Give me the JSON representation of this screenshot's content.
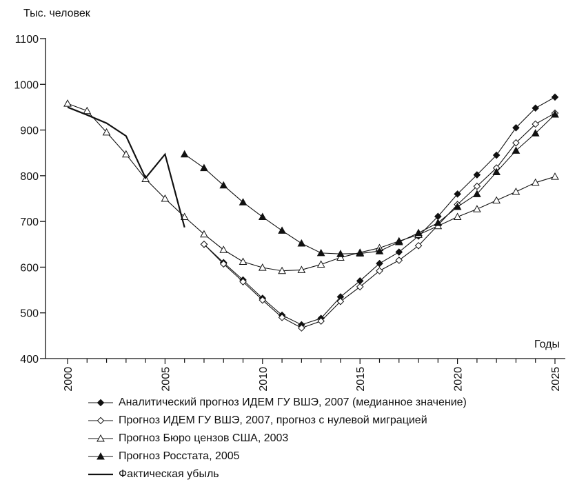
{
  "chart_data": {
    "type": "line",
    "ylabel": "Тыс. человек",
    "xlabel": "Годы",
    "ylim": [
      400,
      1100
    ],
    "xlim": [
      2000,
      2025
    ],
    "yticks": [
      "400",
      "500",
      "600",
      "700",
      "800",
      "900",
      "1000",
      "1100"
    ],
    "xticks": [
      "2000",
      "2005",
      "2010",
      "2015",
      "2020",
      "2025"
    ],
    "grid": false,
    "legend_position": "bottom",
    "series": [
      {
        "name": "Аналитический прогноз ИДЕМ ГУ ВШЭ, 2007 (медианное значение)",
        "marker": "filled-diamond",
        "color": "#111111",
        "x": [
          2007,
          2008,
          2009,
          2010,
          2011,
          2012,
          2013,
          2014,
          2015,
          2016,
          2017,
          2018,
          2019,
          2020,
          2021,
          2022,
          2023,
          2024,
          2025
        ],
        "y": [
          650,
          610,
          572,
          532,
          495,
          474,
          488,
          535,
          570,
          608,
          633,
          668,
          711,
          760,
          802,
          845,
          905,
          948,
          972
        ]
      },
      {
        "name": "Прогноз ИДЕМ ГУ ВШЭ, 2007, прогноз с нулевой миграцией",
        "marker": "open-diamond",
        "color": "#111111",
        "x": [
          2007,
          2008,
          2009,
          2010,
          2011,
          2012,
          2013,
          2014,
          2015,
          2016,
          2017,
          2018,
          2019,
          2020,
          2021,
          2022,
          2023,
          2024,
          2025
        ],
        "y": [
          650,
          607,
          568,
          528,
          490,
          467,
          482,
          525,
          557,
          592,
          615,
          647,
          692,
          737,
          777,
          817,
          872,
          913,
          937
        ]
      },
      {
        "name": "Прогноз Бюро цензов США, 2003",
        "marker": "open-triangle",
        "color": "#111111",
        "x": [
          2000,
          2001,
          2002,
          2003,
          2004,
          2005,
          2006,
          2007,
          2008,
          2009,
          2010,
          2011,
          2012,
          2013,
          2014,
          2015,
          2016,
          2017,
          2018,
          2019,
          2020,
          2021,
          2022,
          2023,
          2024,
          2025
        ],
        "y": [
          958,
          942,
          895,
          847,
          793,
          750,
          710,
          672,
          638,
          612,
          599,
          592,
          594,
          606,
          621,
          632,
          642,
          657,
          671,
          690,
          710,
          727,
          746,
          765,
          785,
          798
        ]
      },
      {
        "name": "Прогноз Росстата, 2005",
        "marker": "filled-triangle",
        "color": "#111111",
        "x": [
          2006,
          2007,
          2008,
          2009,
          2010,
          2011,
          2012,
          2013,
          2014,
          2015,
          2016,
          2017,
          2018,
          2019,
          2020,
          2021,
          2022,
          2023,
          2024,
          2025
        ],
        "y": [
          847,
          817,
          779,
          742,
          710,
          680,
          652,
          631,
          629,
          630,
          635,
          655,
          675,
          697,
          732,
          760,
          808,
          855,
          893,
          934
        ]
      },
      {
        "name": "Фактическая убыль",
        "marker": "none",
        "color": "#111111",
        "x": [
          2000,
          2001,
          2002,
          2003,
          2004,
          2005,
          2006
        ],
        "y": [
          950,
          933,
          915,
          887,
          795,
          847,
          687
        ]
      }
    ]
  }
}
